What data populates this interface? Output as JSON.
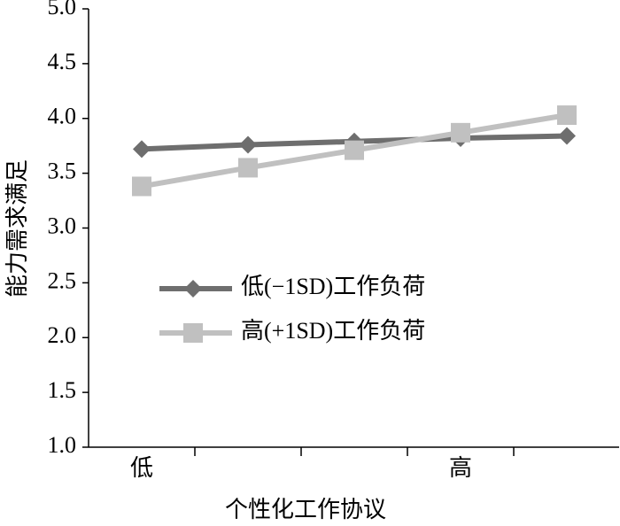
{
  "chart_data": {
    "type": "line",
    "x_label": "个性化工作协议",
    "y_label": "能力需求满足",
    "categories": [
      "低",
      null,
      null,
      "高",
      null
    ],
    "series": [
      {
        "name": "低(−1SD)工作负荷",
        "color": "#6e6e6e",
        "marker": "diamond",
        "values": [
          3.72,
          3.76,
          3.79,
          3.82,
          3.84
        ]
      },
      {
        "name": "高(+1SD)工作负荷",
        "color": "#c0c0c0",
        "marker": "square",
        "values": [
          3.38,
          3.55,
          3.71,
          3.87,
          4.03
        ]
      }
    ],
    "ylim": [
      1.0,
      5.0
    ],
    "yticks": [
      {
        "value": 1.0,
        "label": "1.0"
      },
      1.5,
      {
        "value": 2.0,
        "label": "2.0"
      },
      2.5,
      {
        "value": 3.0,
        "label": "3.0"
      },
      3.5,
      {
        "value": 4.0,
        "label": "4.0"
      },
      4.5,
      {
        "value": 5.0,
        "label": "5.0"
      }
    ],
    "legend": "center-left"
  }
}
